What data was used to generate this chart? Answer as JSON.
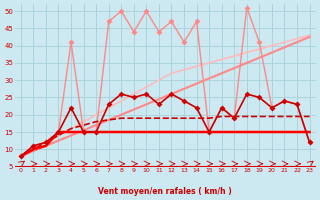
{
  "xlabel": "Vent moyen/en rafales ( km/h )",
  "background_color": "#cce8f0",
  "grid_color": "#aad4dc",
  "x_ticks": [
    0,
    1,
    2,
    3,
    4,
    5,
    6,
    7,
    8,
    9,
    10,
    11,
    12,
    13,
    14,
    15,
    16,
    17,
    18,
    19,
    20,
    21,
    22,
    23
  ],
  "xlim": [
    -0.5,
    23.5
  ],
  "ylim": [
    5,
    52
  ],
  "y_ticks": [
    5,
    10,
    15,
    20,
    25,
    30,
    35,
    40,
    45,
    50
  ],
  "line_flat_red": {
    "x": [
      0,
      1,
      2,
      3,
      4,
      5,
      6,
      7,
      8,
      9,
      10,
      11,
      12,
      13,
      14,
      15,
      16,
      17,
      18,
      19,
      20,
      21,
      22,
      23
    ],
    "y": [
      8,
      10,
      11,
      15,
      15,
      15,
      15,
      15,
      15,
      15,
      15,
      15,
      15,
      15,
      15,
      15,
      15,
      15,
      15,
      15,
      15,
      15,
      15,
      15
    ],
    "color": "#ff0000",
    "lw": 1.8,
    "ls": "-",
    "zorder": 6
  },
  "line_dashed_dark": {
    "x": [
      0,
      1,
      2,
      3,
      4,
      5,
      6,
      7,
      8,
      9,
      10,
      11,
      12,
      13,
      14,
      15,
      16,
      17,
      18,
      19,
      20,
      21,
      22,
      23
    ],
    "y": [
      8,
      10,
      12,
      14,
      16,
      17,
      18,
      18.5,
      19,
      19,
      19,
      19,
      19,
      19,
      19,
      19,
      19.5,
      19.5,
      19.5,
      19.5,
      19.5,
      19.5,
      19.5,
      19.5
    ],
    "color": "#cc0000",
    "lw": 1.2,
    "ls": "--",
    "zorder": 5
  },
  "line_diag_mid": {
    "x": [
      0,
      1,
      2,
      3,
      4,
      5,
      6,
      7,
      8,
      9,
      10,
      11,
      12,
      13,
      14,
      15,
      16,
      17,
      18,
      19,
      20,
      21,
      22,
      23
    ],
    "y": [
      8,
      9.5,
      11,
      12.5,
      14,
      15.5,
      17,
      18.5,
      20,
      21.5,
      23,
      24.5,
      26,
      27.5,
      29,
      30.5,
      32,
      33.5,
      35,
      36.5,
      38,
      39.5,
      41,
      42.5
    ],
    "color": "#ff8888",
    "lw": 1.5,
    "ls": "-",
    "zorder": 3
  },
  "line_diag_light": {
    "x": [
      0,
      1,
      2,
      3,
      4,
      5,
      6,
      7,
      8,
      9,
      10,
      11,
      12,
      13,
      14,
      15,
      16,
      17,
      18,
      19,
      20,
      21,
      22,
      23
    ],
    "y": [
      8,
      10,
      12,
      14,
      16,
      18,
      20,
      22,
      24,
      26,
      28,
      30,
      32,
      33,
      34,
      35,
      36,
      37,
      38,
      39,
      40,
      41,
      42,
      43
    ],
    "color": "#ffbbbb",
    "lw": 1.2,
    "ls": "-",
    "zorder": 2
  },
  "zigzag_light_x": [
    0,
    1,
    2,
    3,
    4,
    5,
    6,
    7,
    8,
    9,
    10,
    11,
    12,
    13,
    14,
    15,
    16,
    17,
    18,
    19,
    20,
    21,
    22,
    23
  ],
  "zigzag_light_y": [
    8,
    11,
    12,
    15,
    41,
    15,
    15,
    47,
    50,
    44,
    50,
    44,
    47,
    41,
    47,
    15,
    22,
    19,
    51,
    41,
    22,
    24,
    23,
    12
  ],
  "zigzag_light_color": "#ff8888",
  "zigzag_light_lw": 1.0,
  "zigzag_light_ms": 3.0,
  "zigzag_dark_x": [
    0,
    1,
    2,
    3,
    4,
    5,
    6,
    7,
    8,
    9,
    10,
    11,
    12,
    13,
    14,
    15,
    16,
    17,
    18,
    19,
    20,
    21,
    22,
    23
  ],
  "zigzag_dark_y": [
    8,
    11,
    12,
    15,
    22,
    15,
    15,
    23,
    26,
    25,
    26,
    23,
    26,
    24,
    22,
    15,
    22,
    19,
    26,
    25,
    22,
    24,
    23,
    12
  ],
  "zigzag_dark_color": "#cc0000",
  "zigzag_dark_lw": 1.2,
  "zigzag_dark_ms": 3.0,
  "tick_color": "#cc0000",
  "xlabel_color": "#cc0000",
  "xlabel_fontsize": 5.5,
  "tick_fontsize": 4.5,
  "ytick_fontsize": 5.0
}
